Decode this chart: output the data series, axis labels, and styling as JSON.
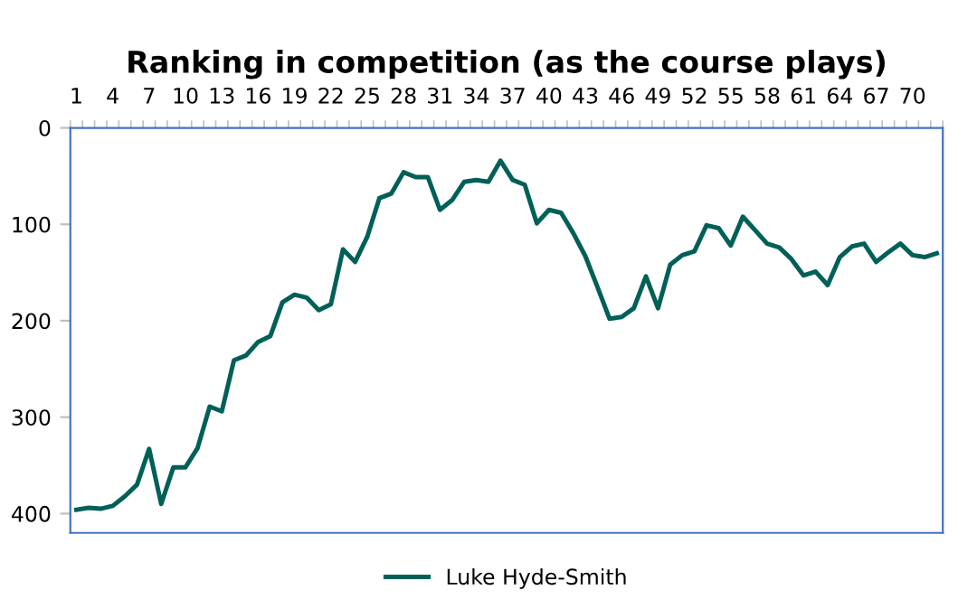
{
  "chart_data": {
    "type": "line",
    "title": "Ranking in competition (as the course plays)",
    "categories": [
      "1",
      null,
      null,
      "4",
      null,
      null,
      "7",
      null,
      null,
      "10",
      null,
      null,
      "13",
      null,
      null,
      "16",
      null,
      null,
      "19",
      null,
      null,
      "22",
      null,
      null,
      "25",
      null,
      null,
      "28",
      null,
      null,
      "31",
      null,
      null,
      "34",
      null,
      null,
      "37",
      null,
      null,
      "40",
      null,
      null,
      "43",
      null,
      null,
      "46",
      null,
      null,
      "49",
      null,
      null,
      "52",
      null,
      null,
      "55",
      null,
      null,
      "58",
      null,
      null,
      "61",
      null,
      null,
      "64",
      null,
      null,
      "67",
      null,
      null,
      "70",
      null,
      null
    ],
    "series": [
      {
        "name": "Luke Hyde-Smith",
        "color": "#006058",
        "values": [
          396,
          394,
          395,
          392,
          382,
          370,
          333,
          390,
          352,
          352,
          332,
          289,
          294,
          241,
          236,
          222,
          216,
          181,
          173,
          176,
          189,
          183,
          126,
          139,
          113,
          73,
          68,
          46,
          51,
          51,
          85,
          75,
          56,
          54,
          56,
          34,
          54,
          59,
          99,
          85,
          88,
          109,
          133,
          165,
          198,
          196,
          187,
          154,
          187,
          142,
          132,
          128,
          101,
          104,
          122,
          92,
          106,
          120,
          124,
          136,
          153,
          149,
          163,
          134,
          123,
          120,
          139,
          129,
          120,
          132,
          134,
          130
        ]
      }
    ],
    "ylim": [
      420,
      0
    ],
    "yticks": [
      0,
      100,
      200,
      300,
      400
    ],
    "grid": false,
    "legend": "bottom",
    "marker": "none",
    "line_style": "solid"
  }
}
